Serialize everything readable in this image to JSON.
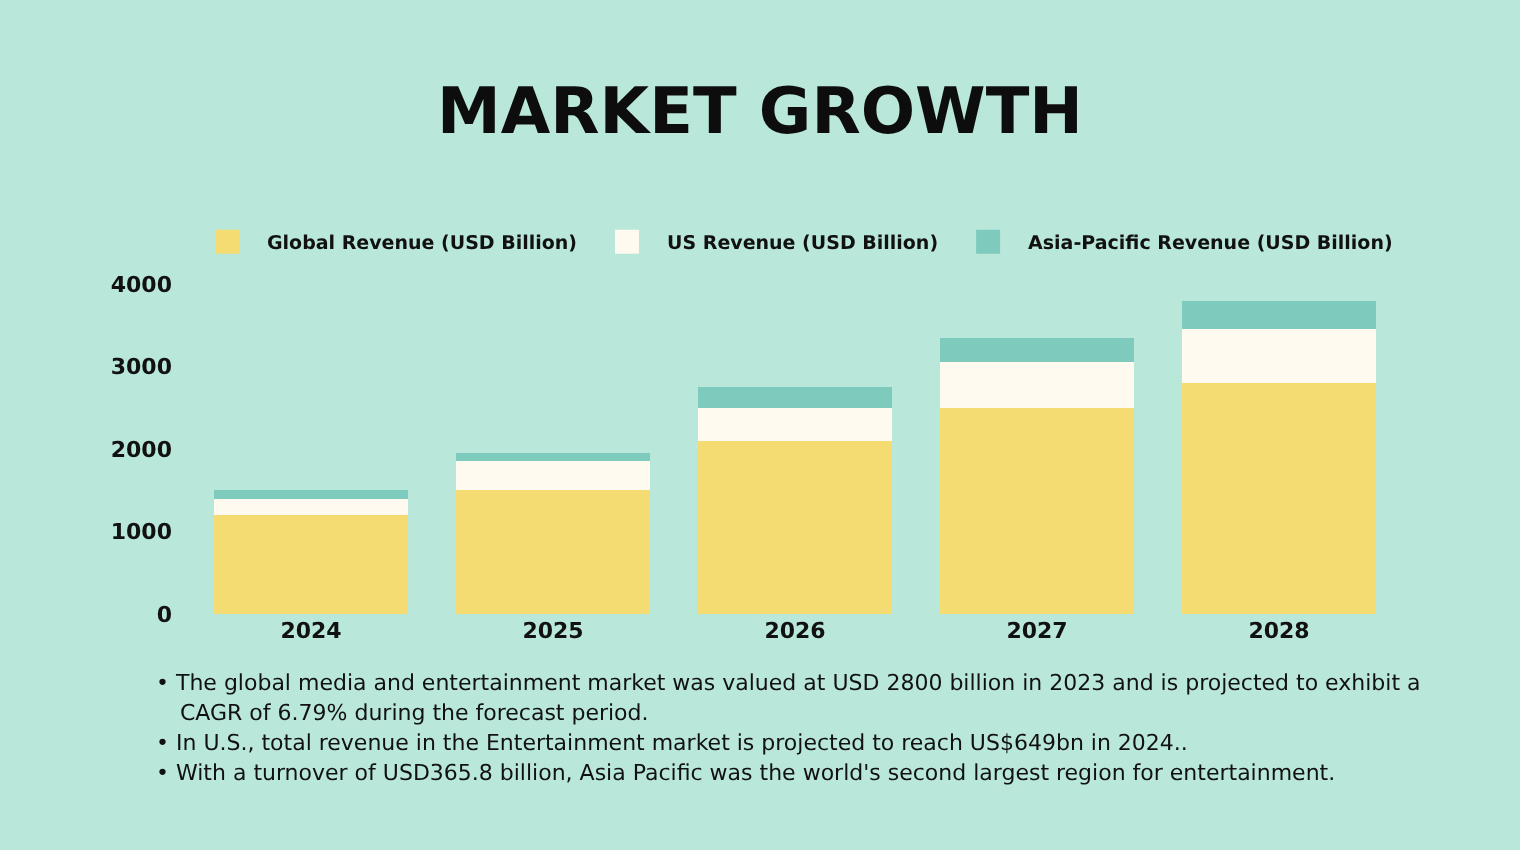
{
  "chart_data": {
    "type": "bar",
    "title": "MARKET GROWTH",
    "categories": [
      "2024",
      "2025",
      "2026",
      "2027",
      "2028"
    ],
    "stacked": true,
    "series": [
      {
        "name": "Global Revenue (USD Billion)",
        "color": "#f5dc72",
        "values": [
          1200,
          1500,
          2100,
          2500,
          2800
        ]
      },
      {
        "name": "US Revenue (USD Billion)",
        "color": "#fffaf0",
        "values": [
          200,
          350,
          400,
          550,
          650
        ]
      },
      {
        "name": "Asia-Pacific Revenue (USD Billion)",
        "color": "#7ecabd",
        "values": [
          100,
          100,
          250,
          300,
          350
        ]
      }
    ],
    "ylim": [
      0,
      4000
    ],
    "yticks": [
      0,
      1000,
      2000,
      3000,
      4000
    ],
    "grid": false,
    "legend": "top",
    "annotations": [
      "• The global media and entertainment market was valued at USD 2800 billion in 2023 and is projected to exhibit a CAGR of 6.79% during the forecast period.",
      "• In U.S., total revenue in the Entertainment market is projected to reach US$649bn in 2024..",
      "• With a turnover of USD365.8 billion, Asia Pacific was the world's second largest region for entertainment."
    ]
  }
}
